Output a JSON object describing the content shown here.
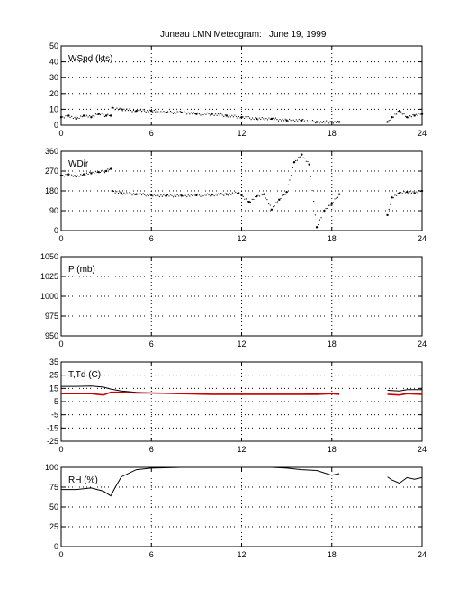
{
  "title": {
    "station": "Juneau LMN Meteogram:",
    "date": "June 19, 1999"
  },
  "colors": {
    "frame": "#000000",
    "grid": "#000000",
    "series_black": "#000000",
    "dewpoint_red": "#cc0000"
  },
  "chart_data": [
    {
      "type": "line",
      "panel_label": "WSpd (kts)",
      "xlim": [
        0,
        24
      ],
      "xticks": [
        0,
        6,
        12,
        18,
        24
      ],
      "ylim": [
        0,
        50
      ],
      "yticks": [
        0,
        10,
        20,
        30,
        40,
        50
      ],
      "grid": true,
      "series": [
        {
          "color": "#000000",
          "style": "dots",
          "segments": [
            {
              "x": [
                0,
                0.5,
                1,
                1.5,
                2,
                2.5,
                3,
                3.3
              ],
              "y": [
                5,
                6,
                4,
                6,
                5,
                7,
                6,
                6
              ]
            },
            {
              "x": [
                3.4,
                4,
                5,
                6,
                7,
                8,
                9,
                10,
                11,
                12,
                13,
                14,
                15,
                16,
                17,
                18,
                18.5
              ],
              "y": [
                11,
                10,
                9,
                9,
                8,
                8,
                7,
                7,
                6,
                5,
                4,
                4,
                3,
                3,
                2,
                2,
                2
              ]
            },
            {
              "x": [
                21.7,
                22,
                22.5,
                23,
                23.5,
                24
              ],
              "y": [
                2,
                5,
                9,
                5,
                6,
                7
              ]
            }
          ]
        }
      ]
    },
    {
      "type": "scatter",
      "panel_label": "WDir",
      "xlim": [
        0,
        24
      ],
      "xticks": [
        0,
        6,
        12,
        18,
        24
      ],
      "ylim": [
        0,
        360
      ],
      "yticks": [
        0,
        90,
        180,
        270,
        360
      ],
      "grid": true,
      "series": [
        {
          "color": "#000000",
          "style": "dots",
          "segments": [
            {
              "x": [
                0,
                0.5,
                1,
                1.5,
                2,
                2.5,
                3,
                3.3
              ],
              "y": [
                250,
                255,
                245,
                255,
                260,
                265,
                270,
                280
              ]
            },
            {
              "x": [
                3.4,
                4,
                5,
                6,
                7,
                8,
                9,
                10,
                11,
                11.8
              ],
              "y": [
                180,
                170,
                165,
                160,
                158,
                158,
                160,
                162,
                165,
                170
              ]
            },
            {
              "x": [
                12,
                12.5,
                13,
                13.5,
                14,
                14.5,
                15,
                15.5,
                16,
                16.5,
                17,
                17.5,
                18,
                18.5
              ],
              "y": [
                160,
                130,
                155,
                165,
                95,
                140,
                175,
                310,
                345,
                300,
                15,
                90,
                120,
                165
              ]
            },
            {
              "x": [
                21.7,
                22,
                22.5,
                23,
                23.5,
                24
              ],
              "y": [
                70,
                150,
                170,
                175,
                170,
                180
              ]
            }
          ]
        }
      ]
    },
    {
      "type": "line",
      "panel_label": "P (mb)",
      "xlim": [
        0,
        24
      ],
      "xticks": [
        0,
        6,
        12,
        18,
        24
      ],
      "ylim": [
        950,
        1050
      ],
      "yticks": [
        950,
        975,
        1000,
        1025,
        1050
      ],
      "grid": true,
      "series": []
    },
    {
      "type": "line",
      "panel_label": "T,Td (C)",
      "xlim": [
        0,
        24
      ],
      "xticks": [
        0,
        6,
        12,
        18,
        24
      ],
      "ylim": [
        -25,
        35
      ],
      "yticks": [
        -25,
        -15,
        -5,
        5,
        15,
        25,
        35
      ],
      "grid": true,
      "series": [
        {
          "color": "#000000",
          "style": "line",
          "segments": [
            {
              "x": [
                0,
                1,
                2,
                2.8,
                3.3,
                4,
                5,
                6,
                8,
                10,
                12,
                14,
                16,
                17,
                18,
                18.5
              ],
              "y": [
                16.5,
                16.5,
                16.8,
                16,
                14.5,
                13,
                12,
                11.5,
                11,
                10.5,
                10.5,
                10.5,
                10.5,
                11,
                11.5,
                11
              ]
            },
            {
              "x": [
                21.7,
                22.5,
                23,
                24
              ],
              "y": [
                13.5,
                13,
                14,
                14
              ]
            }
          ]
        },
        {
          "color": "#cc0000",
          "style": "line",
          "segments": [
            {
              "x": [
                0,
                1,
                2,
                2.8,
                3.3,
                4,
                5,
                6,
                8,
                10,
                12,
                14,
                16,
                17,
                18,
                18.5
              ],
              "y": [
                11,
                11,
                11,
                10,
                12,
                12,
                11.5,
                11.5,
                11,
                10.5,
                10.5,
                10.5,
                10.5,
                10.5,
                11,
                10.5
              ]
            },
            {
              "x": [
                21.7,
                22.5,
                23,
                24
              ],
              "y": [
                10.5,
                10,
                11,
                10.5
              ]
            }
          ]
        }
      ]
    },
    {
      "type": "line",
      "panel_label": "RH (%)",
      "xlim": [
        0,
        24
      ],
      "xticks": [
        0,
        6,
        12,
        18,
        24
      ],
      "ylim": [
        0,
        100
      ],
      "yticks": [
        0,
        25,
        50,
        75,
        100
      ],
      "grid": true,
      "series": [
        {
          "color": "#000000",
          "style": "line",
          "segments": [
            {
              "x": [
                0,
                1,
                2,
                2.8,
                3.3,
                3.6,
                4,
                5,
                6,
                8,
                10,
                12,
                14,
                15,
                16,
                17,
                18,
                18.5
              ],
              "y": [
                72,
                72,
                74,
                70,
                64,
                75,
                88,
                97,
                99,
                100,
                100,
                100,
                100,
                99,
                97,
                96,
                90,
                92
              ]
            },
            {
              "x": [
                21.7,
                22,
                22.5,
                23,
                23.5,
                24
              ],
              "y": [
                88,
                84,
                80,
                87,
                85,
                87
              ]
            }
          ]
        }
      ]
    }
  ]
}
